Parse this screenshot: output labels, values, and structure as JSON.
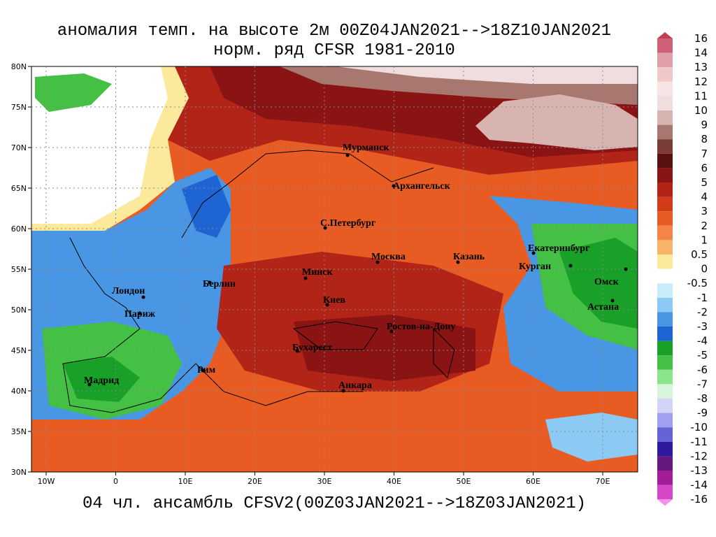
{
  "title": "аномалия темп. на высоте 2м 00Z04JAN2021-->18Z10JAN2021",
  "subtitle": "норм. ряд CFSR 1981-2010",
  "footer": "04 чл. ансамбль CFSV2(00Z03JAN2021-->18Z03JAN2021)",
  "lat_labels": [
    "80N",
    "75N",
    "70N",
    "65N",
    "60N",
    "55N",
    "50N",
    "45N",
    "40N",
    "35N",
    "30N"
  ],
  "lon_labels": [
    "10W",
    "0",
    "10E",
    "20E",
    "30E",
    "40E",
    "50E",
    "60E",
    "70E"
  ],
  "cities": [
    "Мурманск",
    "Архангельск",
    "С.Петербург",
    "Москва",
    "Казань",
    "Екатеринбург",
    "Курган",
    "Омск",
    "Астана",
    "Минск",
    "Берлин",
    "Лондон",
    "Париж",
    "Киев",
    "Ростов-на-Дону",
    "Бухарест",
    "Рим",
    "Мадрид",
    "Анкара"
  ],
  "colorbar": [
    {
      "label": "16",
      "color": "#d06078"
    },
    {
      "label": "14",
      "color": "#e0a0a8"
    },
    {
      "label": "13",
      "color": "#f0c8c8"
    },
    {
      "label": "12",
      "color": "#f8e4e4"
    },
    {
      "label": "11",
      "color": "#f0dede"
    },
    {
      "label": "10",
      "color": "#d8b4b0"
    },
    {
      "label": "9",
      "color": "#a87870"
    },
    {
      "label": "8",
      "color": "#7a3c34"
    },
    {
      "label": "7",
      "color": "#5a1010"
    },
    {
      "label": "6",
      "color": "#8a1414"
    },
    {
      "label": "5",
      "color": "#b22418"
    },
    {
      "label": "4",
      "color": "#d23c18"
    },
    {
      "label": "3",
      "color": "#e85c24"
    },
    {
      "label": "2",
      "color": "#f4844a"
    },
    {
      "label": "1",
      "color": "#f8b468"
    },
    {
      "label": "0.5",
      "color": "#fcea9c"
    },
    {
      "label": "0",
      "color": "#ffffff"
    },
    {
      "label": "-0.5",
      "color": "#c8ecfa"
    },
    {
      "label": "-1",
      "color": "#8ccaf4"
    },
    {
      "label": "-2",
      "color": "#4896e4"
    },
    {
      "label": "-3",
      "color": "#1e64d2"
    },
    {
      "label": "-4",
      "color": "#18a028"
    },
    {
      "label": "-5",
      "color": "#44c044"
    },
    {
      "label": "-6",
      "color": "#8ce48c"
    },
    {
      "label": "-7",
      "color": "#d8f4dc"
    },
    {
      "label": "-8",
      "color": "#d4d4f8"
    },
    {
      "label": "-9",
      "color": "#a0a0f0"
    },
    {
      "label": "-10",
      "color": "#6464d8"
    },
    {
      "label": "-11",
      "color": "#3018a0"
    },
    {
      "label": "-12",
      "color": "#641880"
    },
    {
      "label": "-13",
      "color": "#a41c98"
    },
    {
      "label": "-14",
      "color": "#d448c8"
    },
    {
      "label": "-16",
      "color": "#f490e8"
    }
  ]
}
